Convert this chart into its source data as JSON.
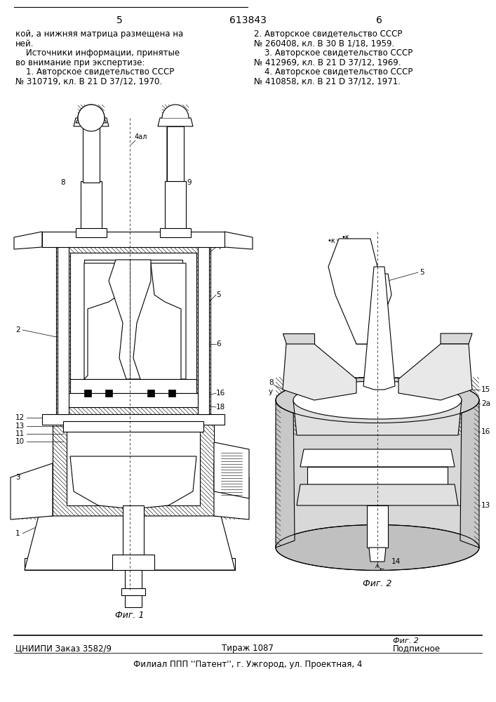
{
  "page_number_left": "5",
  "page_number_center": "613843",
  "page_number_right": "6",
  "text_left_col": [
    "кой, а нижняя матрица размещена на",
    "ней.",
    "    Источники информации, принятые",
    "во внимание при экспертизе:",
    "    1. Авторское свидетельство СССР",
    "№ 310719, кл. В 21 D 37/12, 1970."
  ],
  "text_right_col": [
    "2. Авторское свидетельство СССР",
    "№ 260408, кл. В 30 В 1/18, 1959.",
    "    3. Авторское свидетельство СССР",
    "№ 412969, кл. В 21 D 37/12, 1969.",
    "    4. Авторское свидетельство СССР",
    "№ 410858, кл. В 21 D 37/12, 1971."
  ],
  "fig1_label": "Фиг. 1",
  "fig2_label": "Фиг. 2",
  "footer_left": "ЦНИИПИ Заказ 3582/9",
  "footer_center": "Тираж 1087",
  "footer_right": "Подписное",
  "footer_bottom": "Филиал ППП ''Патент'', г. Ужгород, ул. Проектная, 4",
  "bg_color": "#ffffff"
}
